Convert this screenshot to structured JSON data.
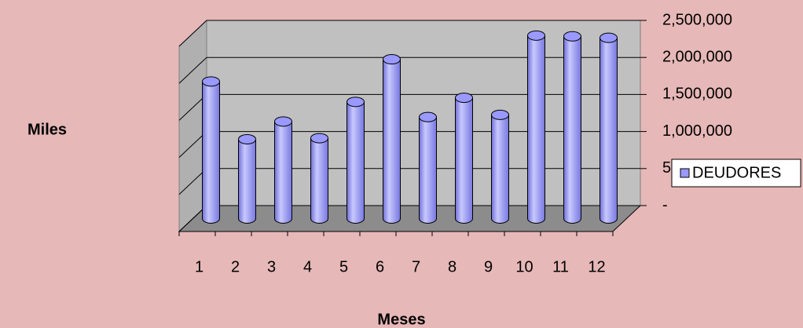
{
  "chart_data": {
    "type": "bar",
    "y_label": "Miles",
    "x_label": "Meses",
    "categories": [
      "1",
      "2",
      "3",
      "4",
      "5",
      "6",
      "7",
      "8",
      "9",
      "10",
      "11",
      "12"
    ],
    "series": [
      {
        "name": "DEUDORES",
        "color": "#9999ff",
        "values": [
          1850000,
          1070000,
          1310000,
          1085000,
          1575000,
          2150000,
          1370000,
          1630000,
          1400000,
          2470000,
          2460000,
          2440000
        ]
      }
    ],
    "ylim": [
      0,
      2500000
    ],
    "yticks": [
      {
        "value": 0,
        "label": "-"
      },
      {
        "value": 500000,
        "label": "500,000"
      },
      {
        "value": 1000000,
        "label": "1,000,000"
      },
      {
        "value": 1500000,
        "label": "1,500,000"
      },
      {
        "value": 2000000,
        "label": "2,000,000"
      },
      {
        "value": 2500000,
        "label": "2,500,000"
      }
    ],
    "grid": true,
    "legend": "right"
  }
}
